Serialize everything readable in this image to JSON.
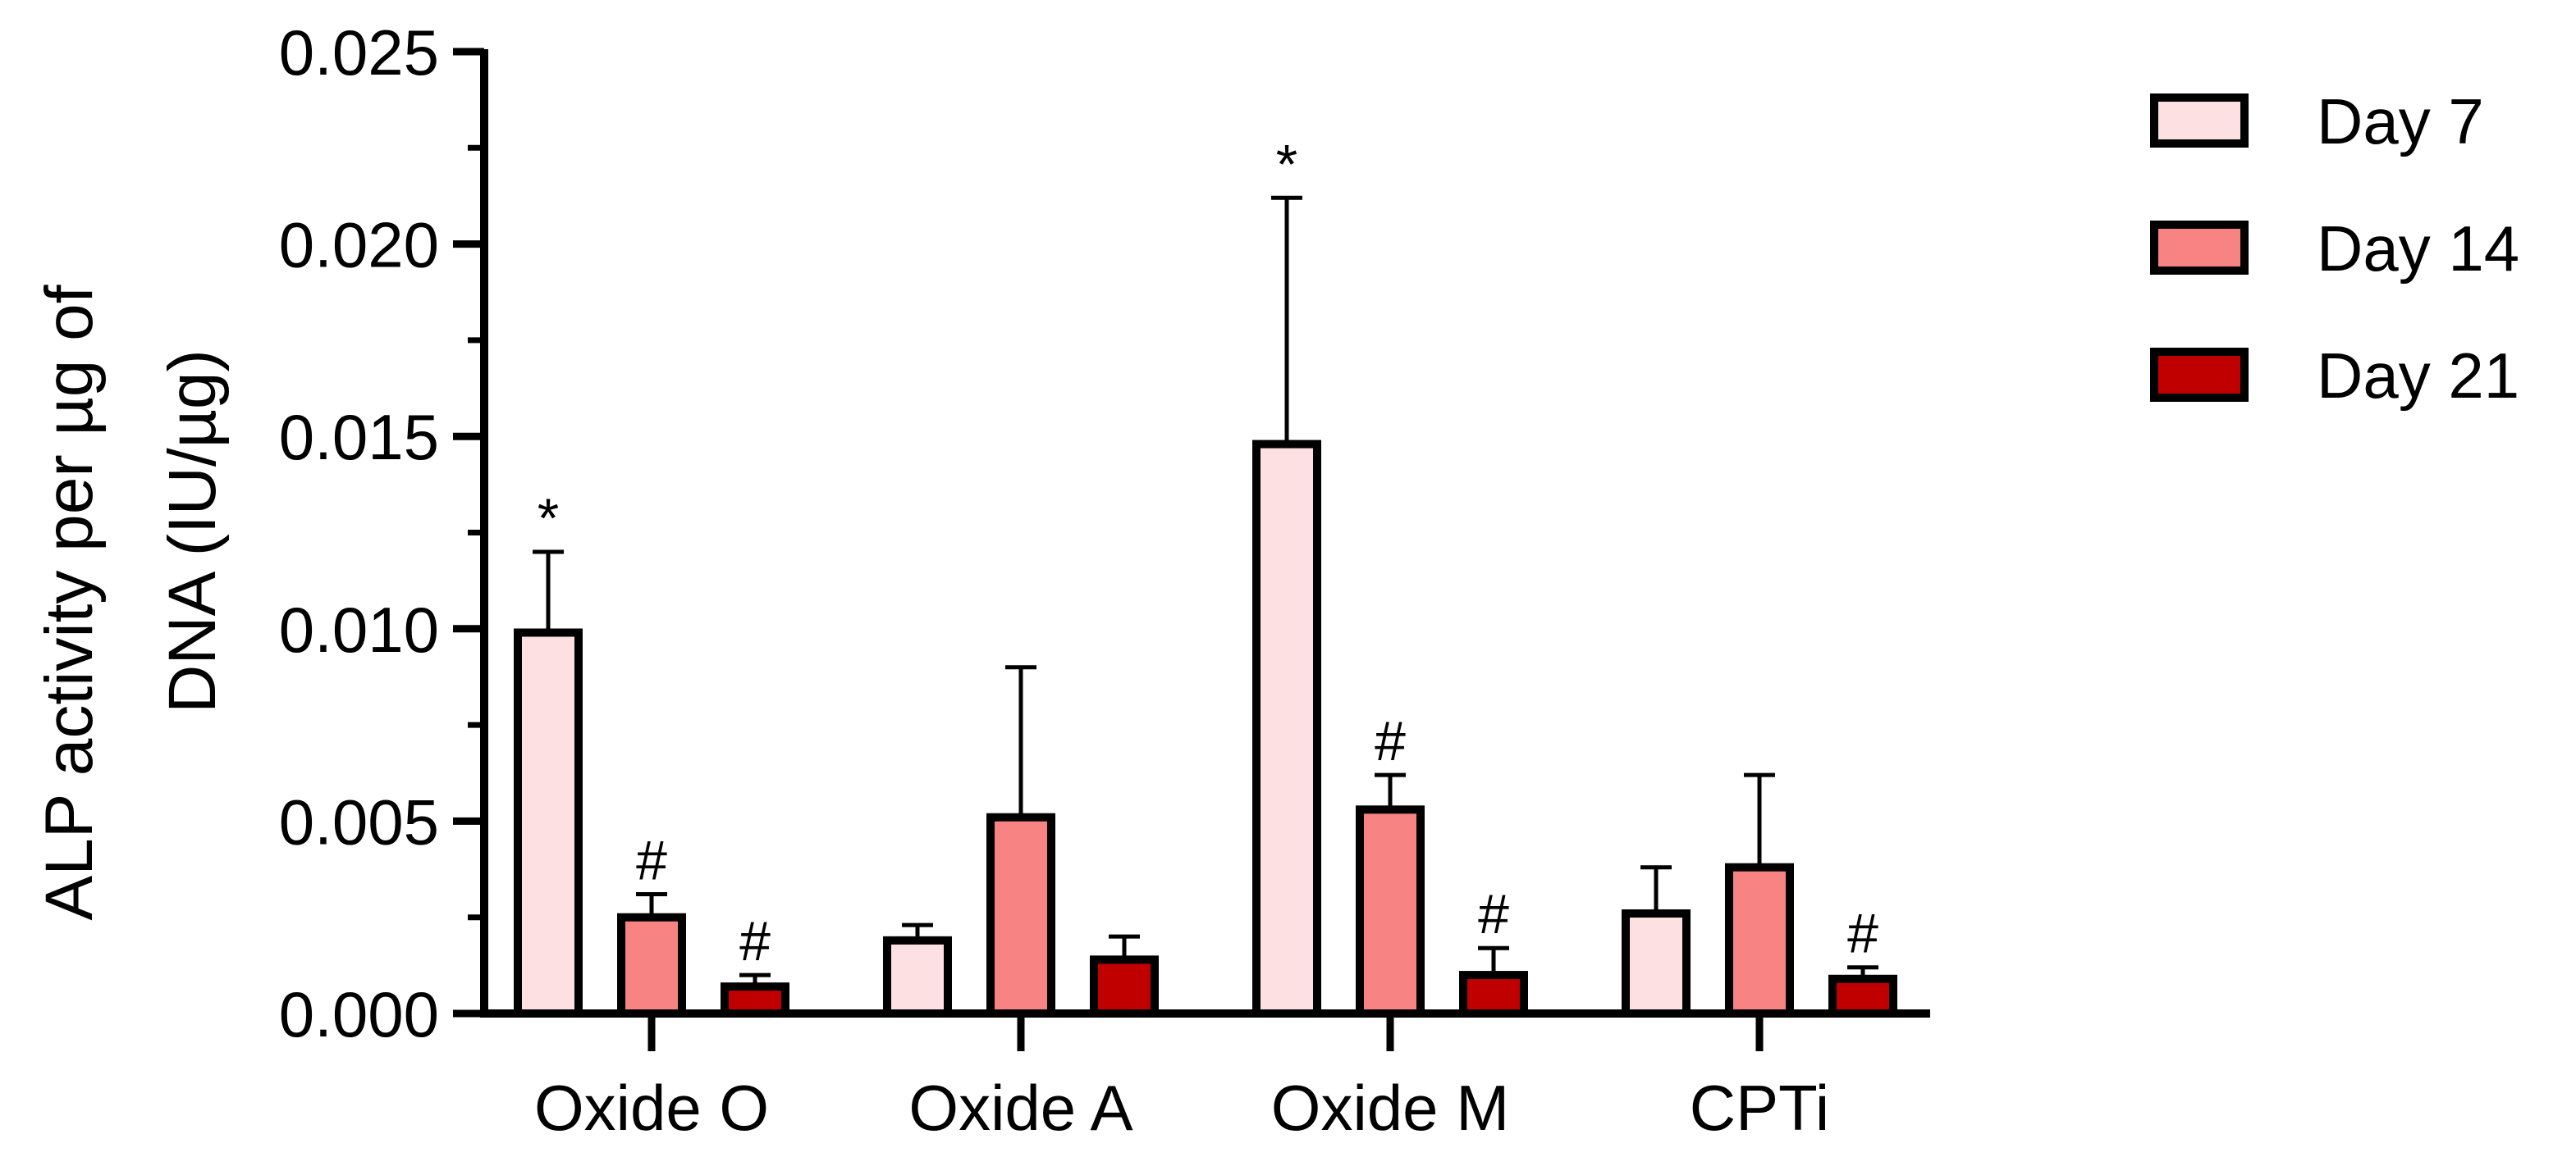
{
  "chart_data": {
    "type": "bar",
    "title": "",
    "xlabel": "",
    "ylabel_lines": [
      "ALP activity per µg of",
      "DNA (IU/µg)"
    ],
    "ylim": [
      0,
      0.025
    ],
    "yticks": [
      0.0,
      0.005,
      0.01,
      0.015,
      0.02,
      0.025
    ],
    "ytick_labels": [
      "0.000",
      "0.005",
      "0.010",
      "0.015",
      "0.020",
      "0.025"
    ],
    "categories": [
      "Oxide O",
      "Oxide A",
      "Oxide M",
      "CPTi"
    ],
    "legend_position": "top-right",
    "grid": false,
    "series": [
      {
        "name": "Day 7",
        "color": "#FDE0E1",
        "values": [
          0.0099,
          0.0019,
          0.0148,
          0.0026
        ],
        "errors": [
          0.0021,
          0.0004,
          0.0064,
          0.0012
        ],
        "annotations": [
          "*",
          "",
          "*",
          ""
        ]
      },
      {
        "name": "Day 14",
        "color": "#F88383",
        "values": [
          0.0025,
          0.0051,
          0.0053,
          0.0038
        ],
        "errors": [
          0.0006,
          0.0039,
          0.0009,
          0.0024
        ],
        "annotations": [
          "#",
          "",
          "#",
          ""
        ]
      },
      {
        "name": "Day 21",
        "color": "#C00000",
        "values": [
          0.0007,
          0.0014,
          0.001,
          0.0009
        ],
        "errors": [
          0.0003,
          0.0006,
          0.0007,
          0.0003
        ],
        "annotations": [
          "#",
          "",
          "#",
          "#"
        ]
      }
    ]
  }
}
